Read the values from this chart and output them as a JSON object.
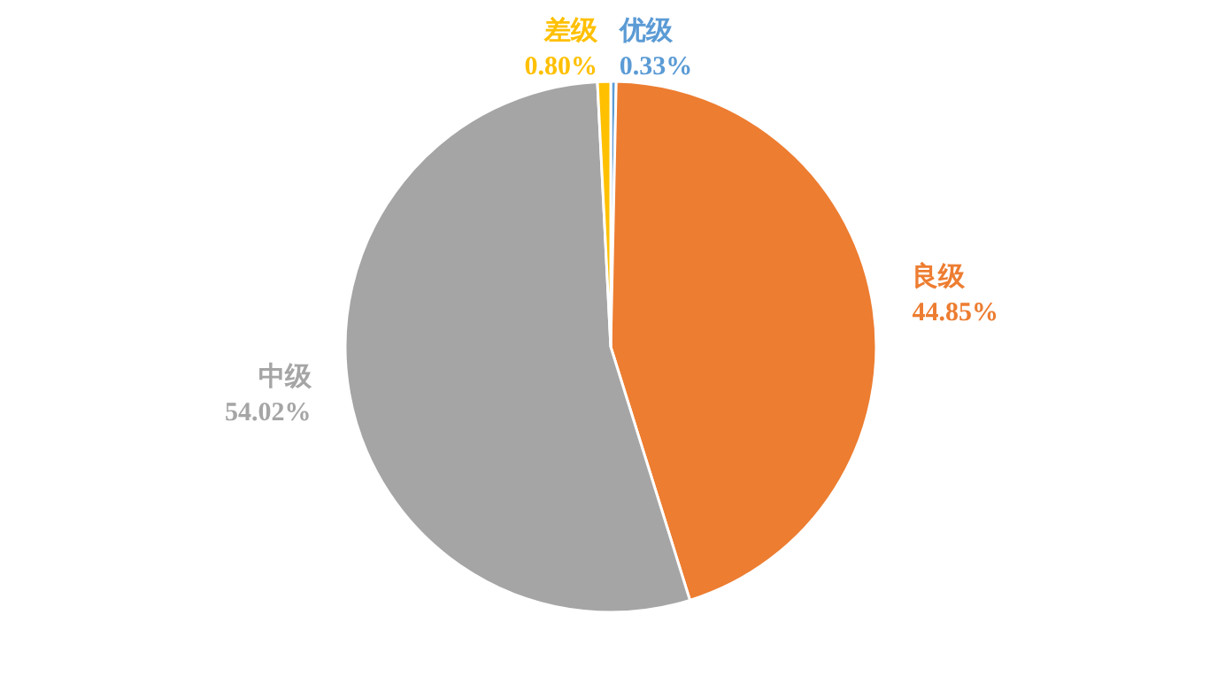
{
  "chart_data": {
    "type": "pie",
    "categories": [
      "优级",
      "良级",
      "中级",
      "差级"
    ],
    "values": [
      0.33,
      44.85,
      54.02,
      0.8
    ],
    "value_labels": [
      "0.33%",
      "44.85%",
      "54.02%",
      "0.80%"
    ],
    "colors": [
      "#5b9bd5",
      "#ed7d31",
      "#a5a5a5",
      "#ffc000"
    ],
    "legend": false
  }
}
